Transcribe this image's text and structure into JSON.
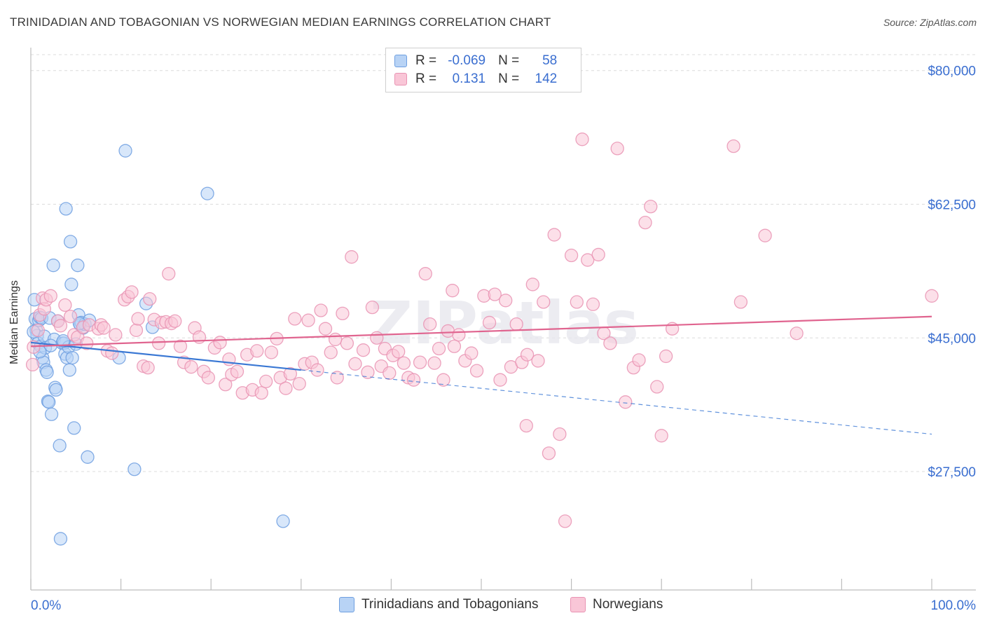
{
  "title": "TRINIDADIAN AND TOBAGONIAN VS NORWEGIAN MEDIAN EARNINGS CORRELATION CHART",
  "source": "Source: ZipAtlas.com",
  "watermark": "ZIPatlas",
  "stats": [
    {
      "r_label": "R =",
      "r_value": "-0.069",
      "n_label": "N =",
      "n_value": "58",
      "fill": "#b8d3f5",
      "stroke": "#6e9fe0"
    },
    {
      "r_label": "R =",
      "r_value": "0.131",
      "n_label": "N =",
      "n_value": "142",
      "fill": "#f9c6d7",
      "stroke": "#e993b3"
    }
  ],
  "chart_data": {
    "type": "scatter",
    "title": "TRINIDADIAN AND TOBAGONIAN VS NORWEGIAN MEDIAN EARNINGS CORRELATION CHART",
    "xlabel": "",
    "ylabel": "Median Earnings",
    "xlim": [
      0,
      100
    ],
    "ylim": [
      12000,
      83000
    ],
    "x_tick_labels": [
      "0.0%",
      "100.0%"
    ],
    "y_ticks": [
      27500,
      45000,
      62500,
      80000
    ],
    "y_tick_labels": [
      "$27,500",
      "$45,000",
      "$62,500",
      "$80,000"
    ],
    "grid": true,
    "legend_position": "bottom",
    "series": [
      {
        "name": "Trinidadians and Tobagonians",
        "color": "#6e9fe0",
        "fill": "#b8d3f5",
        "trend": {
          "x0": 0,
          "y0": 44400,
          "x1": 30,
          "y1": 40800,
          "dash_to_x": 100,
          "dash_to_y": 32400,
          "color": "#3a78d4"
        },
        "points": [
          [
            0.4,
            50000
          ],
          [
            0.5,
            47500
          ],
          [
            0.6,
            46000
          ],
          [
            0.7,
            45300
          ],
          [
            0.8,
            44300
          ],
          [
            0.9,
            47300
          ],
          [
            1.0,
            47700
          ],
          [
            1.1,
            43900
          ],
          [
            1.2,
            47600
          ],
          [
            1.3,
            42400
          ],
          [
            1.4,
            41800
          ],
          [
            1.5,
            45200
          ],
          [
            1.6,
            43700
          ],
          [
            1.7,
            40800
          ],
          [
            1.8,
            40500
          ],
          [
            1.9,
            36700
          ],
          [
            2.0,
            36600
          ],
          [
            2.1,
            47600
          ],
          [
            2.3,
            35000
          ],
          [
            2.5,
            54500
          ],
          [
            2.6,
            44800
          ],
          [
            2.7,
            38500
          ],
          [
            2.8,
            38200
          ],
          [
            3.0,
            47200
          ],
          [
            3.2,
            30900
          ],
          [
            3.3,
            18700
          ],
          [
            3.5,
            44300
          ],
          [
            3.7,
            44300
          ],
          [
            3.8,
            42900
          ],
          [
            3.9,
            61900
          ],
          [
            4.0,
            42400
          ],
          [
            4.2,
            43800
          ],
          [
            4.3,
            40800
          ],
          [
            4.4,
            57600
          ],
          [
            4.5,
            52000
          ],
          [
            4.6,
            42400
          ],
          [
            4.8,
            33200
          ],
          [
            5.0,
            44200
          ],
          [
            5.2,
            54500
          ],
          [
            5.3,
            48000
          ],
          [
            5.5,
            46700
          ],
          [
            5.6,
            47000
          ],
          [
            5.8,
            46300
          ],
          [
            6.0,
            46800
          ],
          [
            6.3,
            29400
          ],
          [
            6.5,
            47300
          ],
          [
            9.8,
            42400
          ],
          [
            10.5,
            69500
          ],
          [
            11.5,
            27800
          ],
          [
            12.8,
            49500
          ],
          [
            13.5,
            46400
          ],
          [
            19.6,
            63900
          ],
          [
            28.0,
            21000
          ],
          [
            0.3,
            45800
          ],
          [
            1.0,
            43200
          ],
          [
            2.2,
            44000
          ],
          [
            3.6,
            44600
          ],
          [
            5.4,
            46900
          ]
        ]
      },
      {
        "name": "Norwegians",
        "color": "#e993b3",
        "fill": "#f9c6d7",
        "trend": {
          "x0": 0,
          "y0": 43900,
          "x1": 100,
          "y1": 47800,
          "color": "#e0648f"
        },
        "points": [
          [
            0.2,
            41500
          ],
          [
            0.3,
            43800
          ],
          [
            0.8,
            46000
          ],
          [
            1.0,
            48000
          ],
          [
            1.3,
            50200
          ],
          [
            1.5,
            48800
          ],
          [
            1.7,
            50000
          ],
          [
            2.2,
            50500
          ],
          [
            3.0,
            47200
          ],
          [
            3.3,
            46600
          ],
          [
            3.8,
            49300
          ],
          [
            4.4,
            47800
          ],
          [
            4.8,
            45400
          ],
          [
            5.2,
            45100
          ],
          [
            5.8,
            46400
          ],
          [
            6.2,
            44300
          ],
          [
            6.5,
            46700
          ],
          [
            7.5,
            46200
          ],
          [
            7.8,
            46700
          ],
          [
            8.5,
            43300
          ],
          [
            9.0,
            43000
          ],
          [
            9.4,
            45400
          ],
          [
            10.4,
            50000
          ],
          [
            10.8,
            50400
          ],
          [
            11.2,
            51000
          ],
          [
            11.7,
            46000
          ],
          [
            11.9,
            47500
          ],
          [
            12.5,
            41300
          ],
          [
            13.0,
            41100
          ],
          [
            13.2,
            50100
          ],
          [
            13.7,
            47400
          ],
          [
            14.5,
            47000
          ],
          [
            15.0,
            47100
          ],
          [
            15.3,
            53400
          ],
          [
            15.6,
            46900
          ],
          [
            16.0,
            47200
          ],
          [
            16.6,
            43900
          ],
          [
            17.0,
            41800
          ],
          [
            17.8,
            41200
          ],
          [
            18.2,
            46300
          ],
          [
            18.7,
            45100
          ],
          [
            19.2,
            40600
          ],
          [
            19.7,
            39800
          ],
          [
            20.4,
            43700
          ],
          [
            21.0,
            44400
          ],
          [
            21.6,
            38900
          ],
          [
            22.3,
            40200
          ],
          [
            22.9,
            40600
          ],
          [
            23.5,
            37800
          ],
          [
            24.0,
            42800
          ],
          [
            24.6,
            38200
          ],
          [
            25.1,
            43300
          ],
          [
            25.6,
            37800
          ],
          [
            26.1,
            39300
          ],
          [
            26.7,
            43100
          ],
          [
            27.3,
            44900
          ],
          [
            27.7,
            39800
          ],
          [
            28.3,
            38400
          ],
          [
            28.8,
            40300
          ],
          [
            29.3,
            47500
          ],
          [
            29.8,
            39000
          ],
          [
            30.4,
            41600
          ],
          [
            30.8,
            47300
          ],
          [
            31.2,
            41800
          ],
          [
            31.8,
            40800
          ],
          [
            32.2,
            48600
          ],
          [
            32.7,
            46200
          ],
          [
            33.3,
            43100
          ],
          [
            34.0,
            39800
          ],
          [
            34.6,
            48200
          ],
          [
            35.1,
            44300
          ],
          [
            35.6,
            55600
          ],
          [
            36.0,
            41600
          ],
          [
            36.9,
            43400
          ],
          [
            37.4,
            40500
          ],
          [
            37.9,
            49000
          ],
          [
            38.4,
            45000
          ],
          [
            38.9,
            41300
          ],
          [
            39.3,
            43600
          ],
          [
            39.8,
            40400
          ],
          [
            40.2,
            42700
          ],
          [
            40.8,
            43200
          ],
          [
            41.4,
            41700
          ],
          [
            41.9,
            39800
          ],
          [
            42.5,
            39500
          ],
          [
            43.2,
            41800
          ],
          [
            43.8,
            53400
          ],
          [
            44.3,
            46800
          ],
          [
            44.8,
            41700
          ],
          [
            45.3,
            43600
          ],
          [
            45.8,
            39500
          ],
          [
            46.3,
            45900
          ],
          [
            46.8,
            51200
          ],
          [
            47.5,
            45400
          ],
          [
            48.2,
            42000
          ],
          [
            48.9,
            43000
          ],
          [
            49.5,
            40700
          ],
          [
            50.3,
            50500
          ],
          [
            50.9,
            47000
          ],
          [
            51.5,
            50700
          ],
          [
            52.1,
            39500
          ],
          [
            52.7,
            49900
          ],
          [
            53.3,
            41200
          ],
          [
            53.9,
            46800
          ],
          [
            54.5,
            41800
          ],
          [
            55.1,
            42800
          ],
          [
            55.7,
            52000
          ],
          [
            56.3,
            42000
          ],
          [
            56.9,
            49700
          ],
          [
            57.5,
            29900
          ],
          [
            58.1,
            58500
          ],
          [
            58.7,
            32400
          ],
          [
            59.3,
            21000
          ],
          [
            60.0,
            55800
          ],
          [
            60.6,
            49700
          ],
          [
            61.2,
            71000
          ],
          [
            61.8,
            55200
          ],
          [
            62.4,
            49400
          ],
          [
            63.0,
            55900
          ],
          [
            63.6,
            45600
          ],
          [
            64.3,
            44300
          ],
          [
            65.1,
            69800
          ],
          [
            66.0,
            36600
          ],
          [
            66.9,
            41100
          ],
          [
            67.5,
            42100
          ],
          [
            68.2,
            60100
          ],
          [
            68.8,
            62200
          ],
          [
            69.5,
            38600
          ],
          [
            70.0,
            32200
          ],
          [
            70.5,
            42600
          ],
          [
            71.2,
            46200
          ],
          [
            78.0,
            70100
          ],
          [
            78.8,
            49700
          ],
          [
            81.5,
            58400
          ],
          [
            85.0,
            45600
          ],
          [
            100.0,
            50500
          ],
          [
            55.0,
            33500
          ],
          [
            22.0,
            42200
          ],
          [
            33.8,
            44800
          ],
          [
            47.0,
            43900
          ],
          [
            14.2,
            44300
          ],
          [
            8.1,
            46300
          ]
        ]
      }
    ]
  }
}
